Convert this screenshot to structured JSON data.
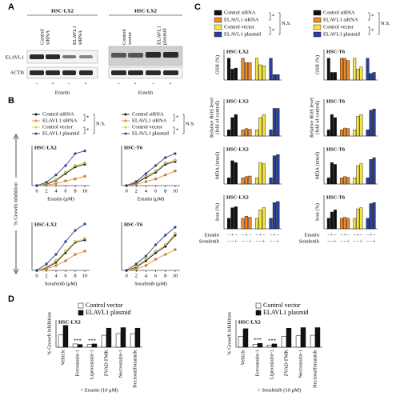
{
  "panel_labels": [
    "A",
    "B",
    "C",
    "D"
  ],
  "blot": {
    "left": {
      "cell_line": "HSC-LX2",
      "lanes": [
        [
          "Control",
          "siRNA"
        ],
        [
          "ELAVL1",
          "siRNA"
        ]
      ],
      "signs": [
        "−",
        "+",
        "−",
        "+"
      ],
      "treatment": "Erastin"
    },
    "right": {
      "cell_line": "HSC-LX2",
      "lanes": [
        [
          "Control",
          "vector"
        ],
        [
          "ELAVL1",
          "plasmid"
        ]
      ],
      "signs": [
        "−",
        "+",
        "−",
        "+"
      ],
      "treatment": "Erastin"
    },
    "rows": [
      "ELAVL1",
      "ACTB"
    ]
  },
  "panel_b_ylabel": "% Growth inhibition",
  "chart_data": [
    {
      "type": "line",
      "title": "HSC-LX2",
      "x": [
        0,
        2,
        4,
        6,
        8,
        10
      ],
      "xlim": [
        -1,
        11
      ],
      "xticks": [
        0,
        2,
        4,
        6,
        8,
        10
      ],
      "xlabel": "Erastin (μM)",
      "ylim": [
        0,
        60
      ],
      "annotations": [
        "*",
        "N.S.",
        "*"
      ],
      "series": [
        {
          "name": "Control siRNA",
          "color": "#111111",
          "values": [
            0,
            2,
            8,
            18,
            28,
            32
          ]
        },
        {
          "name": "ELAVL1 siRNA",
          "color": "#f08a24",
          "values": [
            0,
            1,
            3,
            7,
            10,
            14
          ]
        },
        {
          "name": "Control vector",
          "color": "#e6d23a",
          "values": [
            0,
            3,
            9,
            20,
            30,
            34
          ]
        },
        {
          "name": "ELAVL1 plasmid",
          "color": "#2b3f9e",
          "values": [
            0,
            5,
            16,
            30,
            48,
            52
          ]
        }
      ]
    },
    {
      "type": "line",
      "title": "HSC-T6",
      "x": [
        0,
        2,
        4,
        6,
        8,
        10
      ],
      "xlim": [
        -1,
        11
      ],
      "xticks": [
        0,
        2,
        4,
        6,
        8,
        10
      ],
      "xlabel": "Erastin (μM)",
      "ylim": [
        0,
        60
      ],
      "annotations": [
        "*",
        "N.S.",
        "*"
      ],
      "series": [
        {
          "name": "Control siRNA",
          "color": "#111111",
          "values": [
            0,
            4,
            12,
            20,
            32,
            36
          ]
        },
        {
          "name": "ELAVL1 siRNA",
          "color": "#f08a24",
          "values": [
            0,
            2,
            6,
            10,
            16,
            22
          ]
        },
        {
          "name": "Control vector",
          "color": "#e6d23a",
          "values": [
            0,
            5,
            14,
            22,
            34,
            38
          ]
        },
        {
          "name": "ELAVL1 plasmid",
          "color": "#2b3f9e",
          "values": [
            0,
            6,
            18,
            30,
            42,
            48
          ]
        }
      ]
    },
    {
      "type": "line",
      "title": "HSC-LX2",
      "x": [
        0,
        2,
        4,
        6,
        8,
        10
      ],
      "xlim": [
        -1,
        11
      ],
      "xticks": [
        0,
        2,
        4,
        6,
        8,
        10
      ],
      "xlabel": "Sorafenib (μM)",
      "ylim": [
        0,
        60
      ],
      "series": [
        {
          "color": "#111111",
          "values": [
            0,
            3,
            10,
            22,
            35,
            38
          ]
        },
        {
          "color": "#f08a24",
          "values": [
            0,
            2,
            6,
            12,
            20,
            24
          ]
        },
        {
          "color": "#e6d23a",
          "values": [
            0,
            4,
            12,
            24,
            36,
            40
          ]
        },
        {
          "color": "#2b3f9e",
          "values": [
            0,
            8,
            20,
            36,
            50,
            58
          ]
        }
      ]
    },
    {
      "type": "line",
      "title": "HSC-T6",
      "x": [
        0,
        2,
        4,
        6,
        8,
        10
      ],
      "xlim": [
        -1,
        11
      ],
      "xticks": [
        0,
        2,
        4,
        6,
        8,
        10
      ],
      "xlabel": "Sorafenib (μM)",
      "ylim": [
        0,
        60
      ],
      "series": [
        {
          "color": "#111111",
          "values": [
            0,
            4,
            12,
            22,
            30,
            44
          ]
        },
        {
          "color": "#f08a24",
          "values": [
            0,
            2,
            6,
            14,
            20,
            26
          ]
        },
        {
          "color": "#e6d23a",
          "values": [
            0,
            5,
            14,
            24,
            32,
            46
          ]
        },
        {
          "color": "#2b3f9e",
          "values": [
            0,
            8,
            18,
            32,
            44,
            54
          ]
        }
      ]
    },
    {
      "type": "bar",
      "title": "HSC-LX2",
      "ylabel": [
        "GSH (%)"
      ],
      "ylim": [
        0,
        140
      ],
      "annotations": [
        "*",
        "N.S.",
        "*"
      ],
      "series": [
        {
          "name": "Control siRNA",
          "color": "#111111",
          "values": [
            100,
            50,
            55
          ]
        },
        {
          "name": "ELAVL1 siRNA",
          "color": "#f08a24",
          "values": [
            100,
            80,
            80
          ]
        },
        {
          "name": "Control vector",
          "color": "#f5e642",
          "values": [
            100,
            70,
            65
          ]
        },
        {
          "name": "ELAVL1 plasmid",
          "color": "#2b3f9e",
          "values": [
            100,
            25,
            25
          ]
        }
      ]
    },
    {
      "type": "bar",
      "title": "HSC-T6",
      "ylabel": [
        "GSH (%)"
      ],
      "ylim": [
        0,
        140
      ],
      "annotations": [
        "*",
        "N.S.",
        "*"
      ],
      "series": [
        {
          "name": "Control siRNA",
          "color": "#111111",
          "values": [
            100,
            35,
            35
          ]
        },
        {
          "name": "ELAVL1 siRNA",
          "color": "#f08a24",
          "values": [
            100,
            100,
            90
          ]
        },
        {
          "name": "Control vector",
          "color": "#f5e642",
          "values": [
            100,
            50,
            60
          ]
        },
        {
          "name": "ELAVL1 plasmid",
          "color": "#2b3f9e",
          "values": [
            100,
            30,
            35
          ]
        }
      ]
    },
    {
      "type": "bar",
      "title": "HSC-LX2",
      "ylabel": [
        "Relative ROS level",
        "(fold of control)"
      ],
      "ylim": [
        0,
        6
      ],
      "series": [
        {
          "color": "#111111",
          "values": [
            1,
            3,
            3.5
          ]
        },
        {
          "color": "#f08a24",
          "values": [
            1,
            1.2,
            1.1
          ]
        },
        {
          "color": "#f5e642",
          "values": [
            1,
            3,
            3.5
          ]
        },
        {
          "color": "#2b3f9e",
          "values": [
            1,
            4.5,
            4.5
          ]
        }
      ]
    },
    {
      "type": "bar",
      "title": "HSC-T6",
      "ylabel": [
        "Relative ROS level",
        "(fold of control)"
      ],
      "ylim": [
        0,
        6
      ],
      "series": [
        {
          "color": "#111111",
          "values": [
            1,
            3.5,
            3
          ]
        },
        {
          "color": "#f08a24",
          "values": [
            1,
            1.3,
            1.2
          ]
        },
        {
          "color": "#f5e642",
          "values": [
            1,
            3.2,
            3.5
          ]
        },
        {
          "color": "#2b3f9e",
          "values": [
            1,
            4.2,
            4.4
          ]
        }
      ]
    },
    {
      "type": "bar",
      "title": "HSC-LX2",
      "ylabel": [
        "MDA (nmol)"
      ],
      "ylim": [
        0,
        6
      ],
      "series": [
        {
          "color": "#111111",
          "values": [
            1,
            3.8,
            3.5
          ]
        },
        {
          "color": "#f08a24",
          "values": [
            1,
            1.2,
            1.3
          ]
        },
        {
          "color": "#f5e642",
          "values": [
            1,
            3.5,
            3.3
          ]
        },
        {
          "color": "#2b3f9e",
          "values": [
            1,
            4.6,
            4.8
          ]
        }
      ]
    },
    {
      "type": "bar",
      "title": "HSC-T6",
      "ylabel": [
        "MDA (nmol)"
      ],
      "ylim": [
        0,
        6
      ],
      "series": [
        {
          "color": "#111111",
          "values": [
            1,
            3.5,
            3.2
          ]
        },
        {
          "color": "#f08a24",
          "values": [
            1,
            1.2,
            1.1
          ]
        },
        {
          "color": "#f5e642",
          "values": [
            1,
            3,
            3.3
          ]
        },
        {
          "color": "#2b3f9e",
          "values": [
            1,
            4,
            4.3
          ]
        }
      ]
    },
    {
      "type": "bar",
      "title": "HSC-LX2",
      "ylabel": [
        "Iron (%)"
      ],
      "ylim": [
        0,
        320
      ],
      "treatments": [
        {
          "name": "Erastin",
          "signs": [
            "−",
            "+",
            "−",
            "−",
            "+",
            "−",
            "−",
            "+",
            "−",
            "−",
            "+",
            "−"
          ]
        },
        {
          "name": "Sorafenib",
          "signs": [
            "−",
            "−",
            "+",
            "−",
            "−",
            "+",
            "−",
            "−",
            "+",
            "−",
            "−",
            "+"
          ]
        }
      ],
      "series": [
        {
          "color": "#111111",
          "values": [
            100,
            200,
            210
          ]
        },
        {
          "color": "#f08a24",
          "values": [
            100,
            120,
            110
          ]
        },
        {
          "color": "#f5e642",
          "values": [
            100,
            180,
            200
          ]
        },
        {
          "color": "#2b3f9e",
          "values": [
            100,
            250,
            260
          ]
        }
      ]
    },
    {
      "type": "bar",
      "title": "HSC-T6",
      "ylabel": [
        "Iron (%)"
      ],
      "ylim": [
        0,
        320
      ],
      "treatments": [
        {
          "name": "Erastin",
          "signs": [
            "−",
            "+",
            "−",
            "−",
            "+",
            "−",
            "−",
            "+",
            "−",
            "−",
            "+",
            "−"
          ]
        },
        {
          "name": "Sorafenib",
          "signs": [
            "−",
            "−",
            "+",
            "−",
            "−",
            "+",
            "−",
            "−",
            "+",
            "−",
            "−",
            "+"
          ]
        }
      ],
      "series": [
        {
          "color": "#111111",
          "values": [
            100,
            160,
            180
          ]
        },
        {
          "color": "#f08a24",
          "values": [
            100,
            110,
            100
          ]
        },
        {
          "color": "#f5e642",
          "values": [
            100,
            190,
            200
          ]
        },
        {
          "color": "#2b3f9e",
          "values": [
            100,
            240,
            250
          ]
        }
      ]
    },
    {
      "type": "grouped_bar",
      "title": "HSC-LX2",
      "ylabel": "% Growth inhibition",
      "xlabel": "+ Erastin (10 μM)",
      "ylim": [
        0,
        100
      ],
      "annotations": [
        "***",
        "***"
      ],
      "categories": [
        "Vehicle",
        "Ferrostatin-1",
        "Liproxstatin-1",
        "ZVAD-FMK",
        "Necrostatin-1",
        "Necrosulfonamide"
      ],
      "series": [
        {
          "name": "Control vector",
          "color": "#ffffff",
          "values": [
            45,
            12,
            10,
            44,
            50,
            50
          ]
        },
        {
          "name": "ELAVL1 plasmid",
          "color": "#111111",
          "values": [
            80,
            10,
            12,
            70,
            72,
            70
          ]
        }
      ]
    },
    {
      "type": "grouped_bar",
      "title": "HSC-LX2",
      "ylabel": "% Growth inhibition",
      "xlabel": "+ Sorafenib (10 μM)",
      "ylim": [
        0,
        100
      ],
      "annotations": [
        "***",
        "***"
      ],
      "categories": [
        "Vehicle",
        "Ferrostatin-1",
        "Liproxstatin-1",
        "ZVAD-FMK",
        "Necrostatin-1",
        "Necrosulfonamide"
      ],
      "series": [
        {
          "name": "Control vector",
          "color": "#ffffff",
          "values": [
            40,
            10,
            8,
            40,
            42,
            44
          ]
        },
        {
          "name": "ELAVL1 plasmid",
          "color": "#111111",
          "values": [
            68,
            14,
            12,
            70,
            72,
            72
          ]
        }
      ]
    }
  ]
}
